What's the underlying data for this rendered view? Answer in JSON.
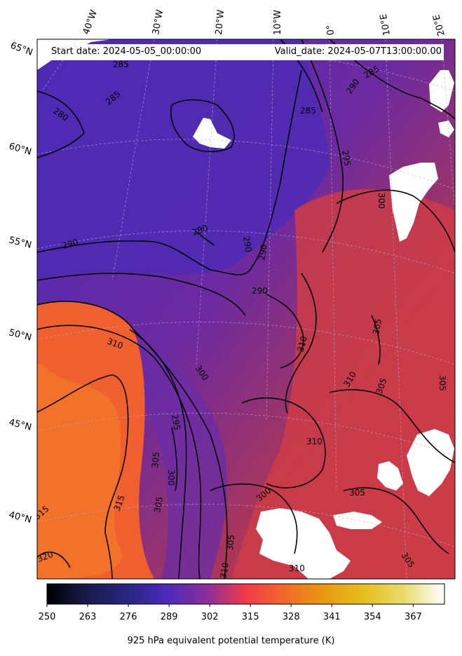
{
  "header": {
    "start_date": "Start date: 2024-05-05_00:00:00",
    "valid_date": "Valid_date: 2024-05-07T13:00:00.00"
  },
  "lon_labels": [
    "40°W",
    "30°W",
    "20°W",
    "10°W",
    "0°",
    "10°E",
    "20°E"
  ],
  "lat_labels": [
    "65°N",
    "60°N",
    "55°N",
    "50°N",
    "45°N",
    "40°N"
  ],
  "contour_labels": [
    "285",
    "285",
    "280",
    "285",
    "290",
    "285",
    "295",
    "290",
    "290",
    "290",
    "290",
    "290",
    "300",
    "310",
    "300",
    "295",
    "305",
    "300",
    "315",
    "305",
    "315",
    "320",
    "305",
    "310",
    "310",
    "305",
    "305",
    "305",
    "310",
    "300",
    "305",
    "310",
    "305",
    "310"
  ],
  "colorbar": {
    "title": "925 hPa equivalent potential temperature (K)",
    "ticks": [
      "250",
      "263",
      "276",
      "289",
      "302",
      "315",
      "328",
      "341",
      "354",
      "367"
    ],
    "colormap": "CMRmap",
    "vmin": 250,
    "vmax": 377
  },
  "colors": {
    "cold_purple": "#4a2ab8",
    "mid_purple": "#6a2a9e",
    "warm_red": "#d2403e",
    "hot_orange": "#f26a28",
    "contour": "#000000",
    "missing": "#ffffff"
  }
}
